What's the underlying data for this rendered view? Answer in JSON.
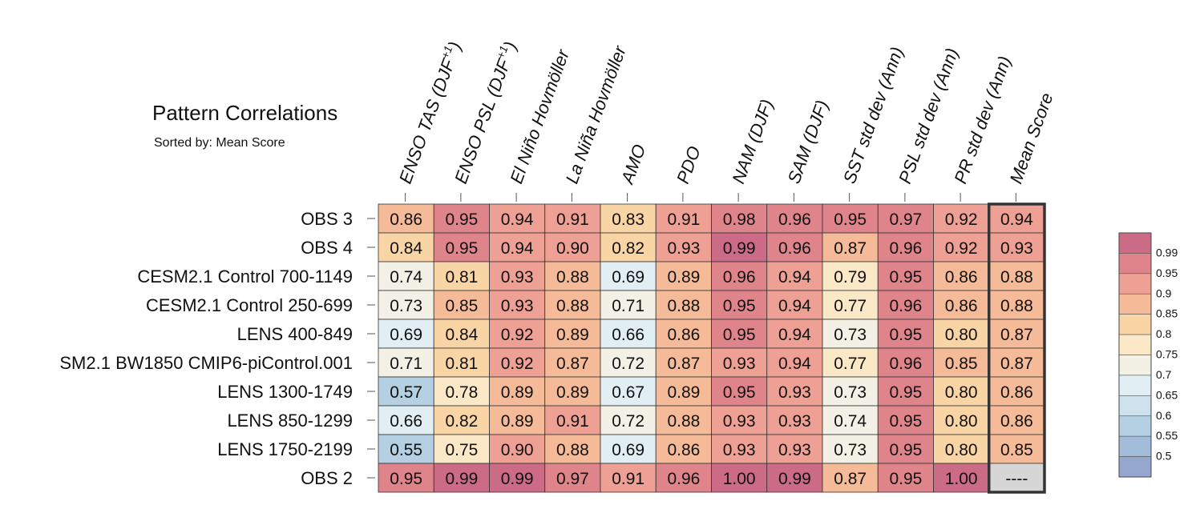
{
  "chart_data": {
    "type": "heatmap",
    "title": "Pattern Correlations",
    "subtitle": "Sorted by: Mean Score",
    "columns": [
      {
        "name": "ENSO TAS (DJF",
        "sup": "+1",
        "close": ")"
      },
      {
        "name": "ENSO PSL (DJF",
        "sup": "+1",
        "close": ")"
      },
      {
        "name": "El Niño Hovmöller",
        "sup": "",
        "close": ""
      },
      {
        "name": "La Niña Hovmöller",
        "sup": "",
        "close": ""
      },
      {
        "name": "AMO",
        "sup": "",
        "close": ""
      },
      {
        "name": "PDO",
        "sup": "",
        "close": ""
      },
      {
        "name": "NAM (DJF)",
        "sup": "",
        "close": ""
      },
      {
        "name": "SAM (DJF)",
        "sup": "",
        "close": ""
      },
      {
        "name": "SST std dev (Ann)",
        "sup": "",
        "close": ""
      },
      {
        "name": "PSL std dev (Ann)",
        "sup": "",
        "close": ""
      },
      {
        "name": "PR std dev (Ann)",
        "sup": "",
        "close": ""
      },
      {
        "name": "Mean Score",
        "sup": "",
        "close": ""
      }
    ],
    "rows": [
      {
        "label": "OBS 3",
        "values": [
          "0.86",
          "0.95",
          "0.94",
          "0.91",
          "0.83",
          "0.91",
          "0.98",
          "0.96",
          "0.95",
          "0.97",
          "0.92",
          "0.94"
        ]
      },
      {
        "label": "OBS 4",
        "values": [
          "0.84",
          "0.95",
          "0.94",
          "0.90",
          "0.82",
          "0.93",
          "0.99",
          "0.96",
          "0.87",
          "0.96",
          "0.92",
          "0.93"
        ]
      },
      {
        "label": "CESM2.1 Control 700-1149",
        "values": [
          "0.74",
          "0.81",
          "0.93",
          "0.88",
          "0.69",
          "0.89",
          "0.96",
          "0.94",
          "0.79",
          "0.95",
          "0.86",
          "0.88"
        ]
      },
      {
        "label": "CESM2.1 Control 250-699",
        "values": [
          "0.73",
          "0.85",
          "0.93",
          "0.88",
          "0.71",
          "0.88",
          "0.95",
          "0.94",
          "0.77",
          "0.96",
          "0.86",
          "0.88"
        ]
      },
      {
        "label": "LENS 400-849",
        "values": [
          "0.69",
          "0.84",
          "0.92",
          "0.89",
          "0.66",
          "0.86",
          "0.95",
          "0.94",
          "0.73",
          "0.95",
          "0.80",
          "0.87"
        ]
      },
      {
        "label": "SM2.1 BW1850 CMIP6-piControl.001",
        "values": [
          "0.71",
          "0.81",
          "0.92",
          "0.87",
          "0.72",
          "0.87",
          "0.93",
          "0.94",
          "0.77",
          "0.96",
          "0.85",
          "0.87"
        ]
      },
      {
        "label": "LENS 1300-1749",
        "values": [
          "0.57",
          "0.78",
          "0.89",
          "0.89",
          "0.67",
          "0.89",
          "0.95",
          "0.93",
          "0.73",
          "0.95",
          "0.80",
          "0.86"
        ]
      },
      {
        "label": "LENS 850-1299",
        "values": [
          "0.66",
          "0.82",
          "0.89",
          "0.91",
          "0.72",
          "0.88",
          "0.93",
          "0.93",
          "0.74",
          "0.95",
          "0.80",
          "0.86"
        ]
      },
      {
        "label": "LENS 1750-2199",
        "values": [
          "0.55",
          "0.75",
          "0.90",
          "0.88",
          "0.69",
          "0.86",
          "0.93",
          "0.93",
          "0.73",
          "0.95",
          "0.80",
          "0.85"
        ]
      },
      {
        "label": "OBS 2",
        "values": [
          "0.95",
          "0.99",
          "0.99",
          "0.97",
          "0.91",
          "0.96",
          "1.00",
          "0.99",
          "0.87",
          "0.95",
          "1.00",
          "----"
        ]
      }
    ],
    "colorbar": {
      "levels": [
        "0.99",
        "0.95",
        "0.9",
        "0.85",
        "0.8",
        "0.75",
        "0.7",
        "0.65",
        "0.6",
        "0.55",
        "0.5"
      ],
      "colors": [
        "#cc6b86",
        "#e0848c",
        "#eda093",
        "#f5bb98",
        "#f9d5a6",
        "#fbe8c6",
        "#f3f1e6",
        "#e1eef3",
        "#cde2ec",
        "#b6d0e3",
        "#a3bcd9",
        "#96a7cf"
      ]
    },
    "missing_color": "#d6d6d6"
  }
}
